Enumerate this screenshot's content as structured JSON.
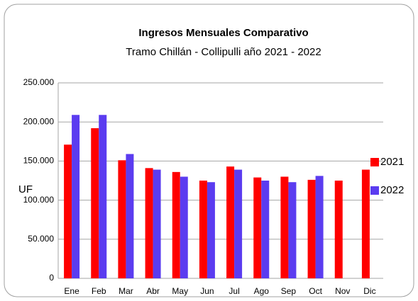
{
  "chart_data": {
    "type": "bar",
    "title": "Ingresos Mensuales Comparativo",
    "subtitle": "Tramo Chillán - Collipulli año 2021 - 2022",
    "y_label": "UF",
    "categories": [
      "Ene",
      "Feb",
      "Mar",
      "Abr",
      "May",
      "Jun",
      "Jul",
      "Ago",
      "Sep",
      "Oct",
      "Nov",
      "Dic"
    ],
    "series": [
      {
        "name": "2021",
        "color": "#ff0000",
        "values": [
          171000,
          192000,
          151000,
          141000,
          136000,
          125000,
          143000,
          129000,
          130000,
          126000,
          125000,
          139000
        ]
      },
      {
        "name": "2022",
        "color": "#5b3cf0",
        "values": [
          209000,
          209000,
          159000,
          139000,
          130000,
          123000,
          139000,
          125000,
          123000,
          131000,
          null,
          null
        ]
      }
    ],
    "ylim": [
      0,
      250000
    ],
    "yticks": [
      0,
      {
        "value": 50000,
        "label": "50.000"
      },
      {
        "value": 100000,
        "label": "100.000"
      },
      {
        "value": 150000,
        "label": "150.000"
      },
      {
        "value": 200000,
        "label": "200.000"
      },
      {
        "value": 250000,
        "label": "250.000"
      }
    ],
    "grid": true,
    "legend": "right"
  }
}
